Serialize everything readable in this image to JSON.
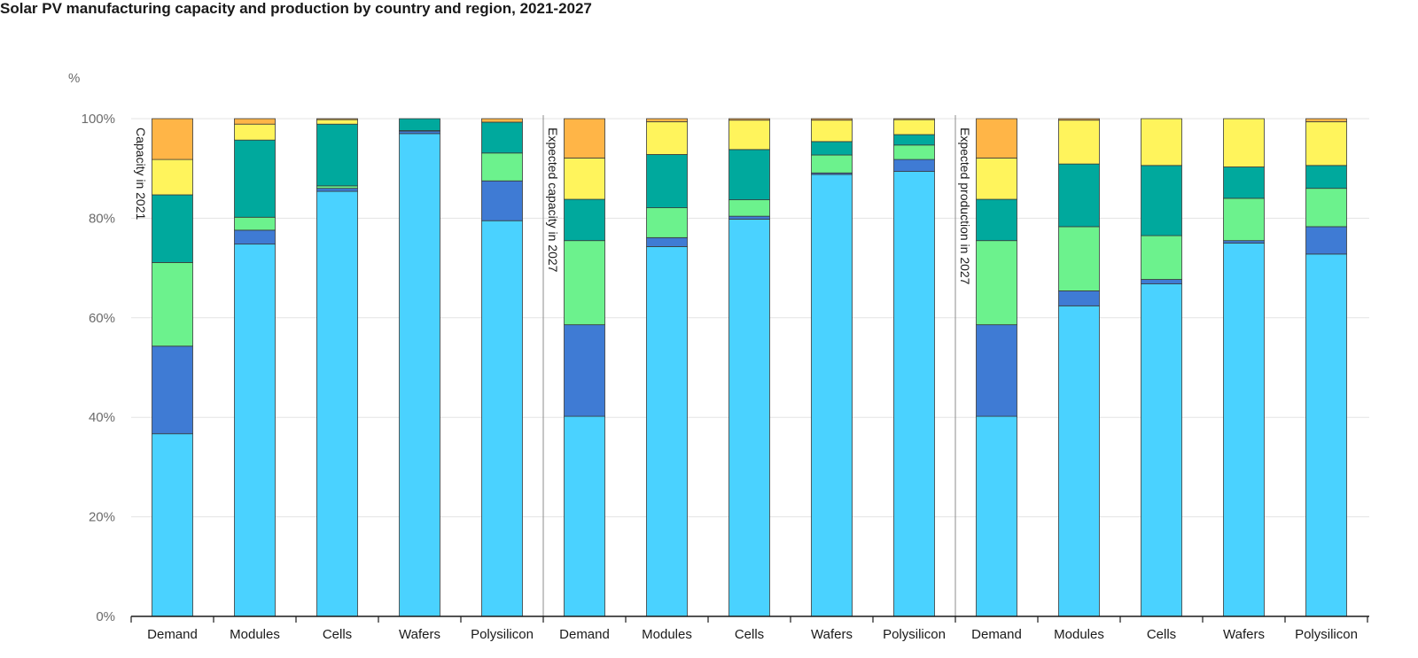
{
  "title": "Solar PV manufacturing capacity and production by country and region, 2021-2027",
  "chart_data": {
    "type": "bar",
    "stacked": true,
    "title": "Solar PV manufacturing capacity and production by country and region, 2021-2027",
    "ylabel": "%",
    "ylim": [
      0,
      100
    ],
    "yticks": [
      "0%",
      "20%",
      "40%",
      "60%",
      "80%",
      "100%"
    ],
    "grid": true,
    "categories": [
      "Demand",
      "Modules",
      "Cells",
      "Wafers",
      "Polysilicon"
    ],
    "colors": [
      "#4ad2ff",
      "#3f7bd4",
      "#6cf28d",
      "#00a99d",
      "#fff45c",
      "#ffb547"
    ],
    "panels": [
      {
        "label": "Capacity in 2021",
        "stacks": [
          [
            36.7,
            17.6,
            16.8,
            13.6,
            7.1,
            8.2
          ],
          [
            74.8,
            2.8,
            2.6,
            15.5,
            3.2,
            1.1
          ],
          [
            85.4,
            0.6,
            0.5,
            12.4,
            0.9,
            0.2
          ],
          [
            97.0,
            0.5,
            0.1,
            2.4,
            0.0,
            0.0
          ],
          [
            79.5,
            8.0,
            5.6,
            6.2,
            0.0,
            0.7
          ]
        ]
      },
      {
        "label": "Expected capacity in 2027",
        "stacks": [
          [
            40.2,
            18.4,
            16.9,
            8.3,
            8.3,
            7.9
          ],
          [
            74.3,
            1.8,
            6.0,
            10.7,
            6.6,
            0.6
          ],
          [
            79.8,
            0.6,
            3.3,
            10.1,
            5.9,
            0.3
          ],
          [
            88.8,
            0.3,
            3.6,
            2.7,
            4.3,
            0.3
          ],
          [
            89.4,
            2.4,
            2.9,
            2.1,
            3.0,
            0.2
          ]
        ]
      },
      {
        "label": "Expected production in 2027",
        "stacks": [
          [
            40.2,
            18.4,
            16.9,
            8.3,
            8.3,
            7.9
          ],
          [
            62.4,
            3.0,
            12.9,
            12.6,
            8.8,
            0.3
          ],
          [
            66.8,
            0.9,
            8.8,
            14.1,
            9.4,
            0.0
          ],
          [
            75.0,
            0.5,
            8.5,
            6.3,
            9.7,
            0.0
          ],
          [
            72.8,
            5.5,
            7.7,
            4.6,
            8.8,
            0.6
          ]
        ]
      }
    ]
  }
}
